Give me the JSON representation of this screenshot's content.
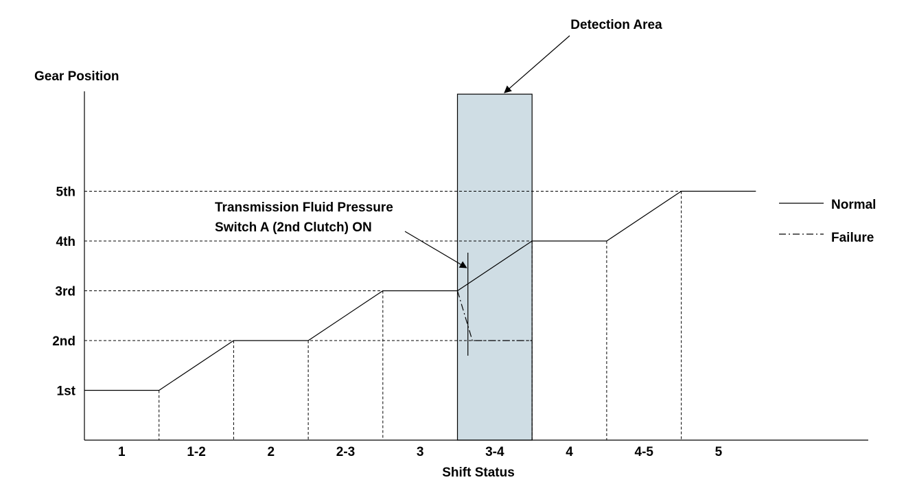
{
  "chart_data": {
    "type": "line",
    "title": "",
    "xlabel": "Shift Status",
    "ylabel": "Gear Position",
    "categories": [
      "1",
      "1-2",
      "2",
      "2-3",
      "3",
      "3-4",
      "4",
      "4-5",
      "5"
    ],
    "y_levels": [
      "1st",
      "2nd",
      "3rd",
      "4th",
      "5th"
    ],
    "ylim": [
      0,
      7
    ],
    "grid": "dashed reference lines",
    "legend_position": "right",
    "series": [
      {
        "name": "Normal",
        "style": "solid",
        "points": [
          [
            0,
            1
          ],
          [
            1,
            1
          ],
          [
            2,
            2
          ],
          [
            3,
            2
          ],
          [
            4,
            3
          ],
          [
            5,
            3
          ],
          [
            6,
            4
          ],
          [
            7,
            4
          ],
          [
            8,
            5
          ],
          [
            9,
            5
          ]
        ]
      },
      {
        "name": "Failure",
        "style": "dash-dot",
        "points": [
          [
            5,
            3
          ],
          [
            5.2,
            2
          ],
          [
            6,
            2
          ]
        ]
      }
    ],
    "highlight_region": {
      "label": "Detection Area",
      "x_start": 5,
      "x_end": 6,
      "color": "#cfdde4"
    },
    "annotations": [
      {
        "text_lines": [
          "Transmission Fluid Pressure",
          "Switch A (2nd Clutch) ON"
        ]
      }
    ]
  }
}
